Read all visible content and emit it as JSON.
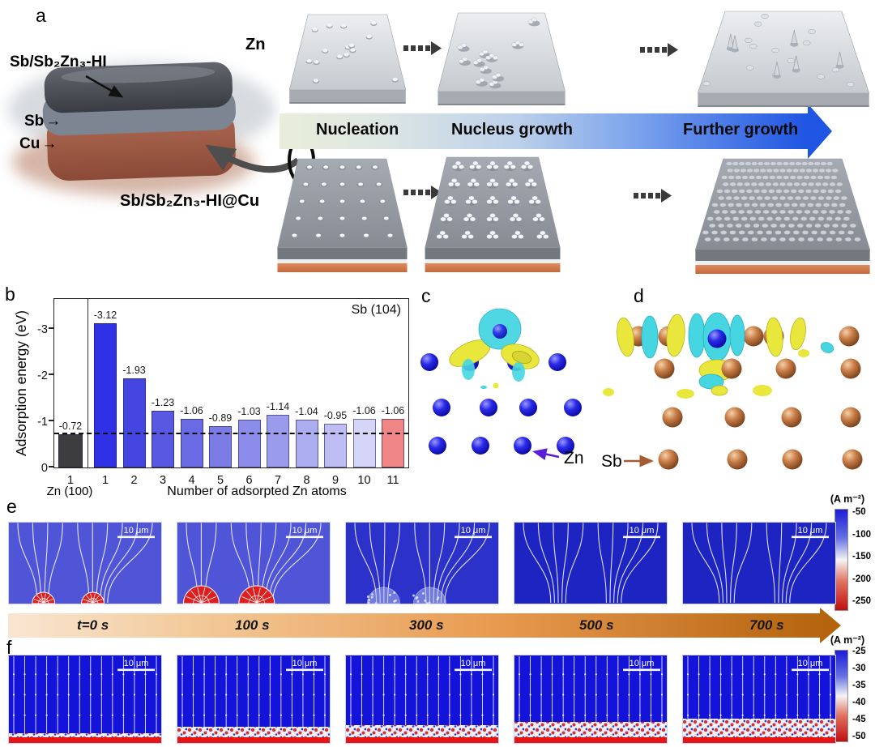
{
  "panel_a": {
    "label": "a",
    "zn_surface_label": "Zn",
    "coating_label": "Sb/Sb₂Zn₃-HI",
    "sb_layer_label": "Sb",
    "cu_layer_label": "Cu",
    "substrate_label": "Sb/Sb₂Zn₃-HI@Cu",
    "stage_labels": [
      "Nucleation",
      "Nucleus growth",
      "Further growth"
    ],
    "arrow_colors": {
      "start": "#e9edda",
      "end": "#1e55e2"
    }
  },
  "panel_b": {
    "label": "b"
  },
  "chart_data": {
    "type": "bar",
    "title": "",
    "xlabel": "Number of adsorpted Zn atoms",
    "ylabel": "Adsorption energy (eV)",
    "yticks": [
      0,
      -1,
      -2,
      -3
    ],
    "ylim": [
      0,
      -3.6
    ],
    "annotation": "Sb (104)",
    "dashed_line_y": -0.72,
    "groups": [
      {
        "name": "Zn (100)",
        "categories": [
          "1"
        ],
        "values": [
          -0.72
        ],
        "colors": [
          "#3d3d40"
        ]
      },
      {
        "name": "Sb (104)",
        "categories": [
          "1",
          "2",
          "3",
          "4",
          "5",
          "6",
          "7",
          "8",
          "9",
          "10",
          "11"
        ],
        "values": [
          -3.12,
          -1.93,
          -1.23,
          -1.06,
          -0.89,
          -1.03,
          -1.14,
          -1.04,
          -0.95,
          -1.06,
          -1.06
        ],
        "colors": [
          "#3030e6",
          "#4545e2",
          "#5858e2",
          "#6a6ae4",
          "#7b7be6",
          "#8c8cea",
          "#9b9bee",
          "#acacf1",
          "#bdbdf4",
          "#d5d5f8",
          "#ef8585"
        ]
      }
    ],
    "legend_position": "top-right",
    "grid": false
  },
  "panel_c": {
    "label": "c",
    "atom_label": "Zn",
    "atom_color": "#1d1dd6",
    "arrow_color": "#5a1ed8",
    "iso_positive_color": "#e9e73c",
    "iso_negative_color": "#46d6e2"
  },
  "panel_d": {
    "label": "d",
    "atom_label": "Sb",
    "atom_color": "#c07a4a",
    "arrow_color": "#a55c32"
  },
  "panel_e": {
    "label": "e",
    "scale_bar": "10 μm",
    "colorbar_title": "(A m⁻²)",
    "colorbar_ticks": [
      "-50",
      "-100",
      "-150",
      "-200",
      "-250"
    ]
  },
  "timeline": {
    "labels": [
      "t=0 s",
      "100 s",
      "300 s",
      "500 s",
      "700 s"
    ]
  },
  "panel_f": {
    "label": "f",
    "scale_bar": "10 μm",
    "colorbar_title": "(A m⁻²)",
    "colorbar_ticks": [
      "-25",
      "-30",
      "-35",
      "-40",
      "-45",
      "-50"
    ]
  }
}
